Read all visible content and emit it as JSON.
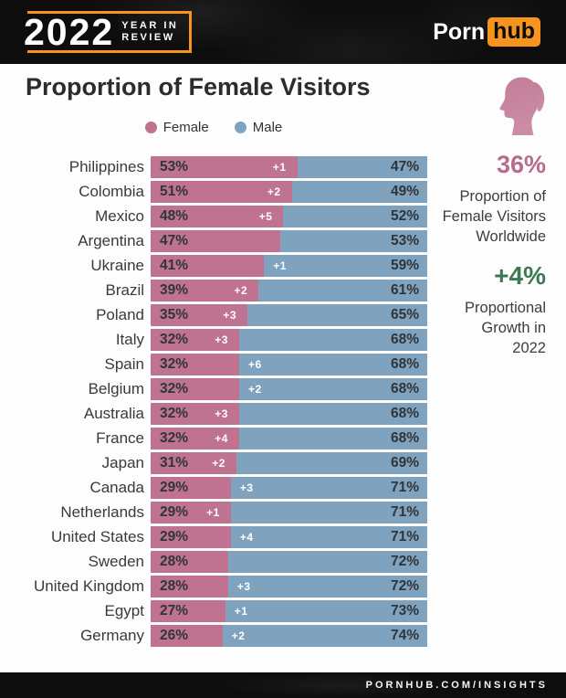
{
  "header": {
    "badge": {
      "year": "2022",
      "tag": "YEAR IN\nREVIEW"
    },
    "logo": {
      "part1": "Porn",
      "part2": "hub"
    }
  },
  "title": "Proportion of Female Visitors",
  "legend": [
    {
      "label": "Female",
      "color": "#bf7390"
    },
    {
      "label": "Male",
      "color": "#7fa2be"
    }
  ],
  "chart_data": {
    "type": "bar",
    "orientation": "horizontal-stacked",
    "title": "Proportion of Female Visitors",
    "unit": "%",
    "xlim": [
      0,
      100
    ],
    "series_names": [
      "Female",
      "Male"
    ],
    "colors": {
      "female": "#bf7390",
      "male": "#7fa2be",
      "change_text": "#ffffff",
      "pct_text": "#30353a"
    },
    "rows": [
      {
        "country": "Philippines",
        "female": 53,
        "male": 47,
        "change": "+1",
        "change_side": "female"
      },
      {
        "country": "Colombia",
        "female": 51,
        "male": 49,
        "change": "+2",
        "change_side": "female"
      },
      {
        "country": "Mexico",
        "female": 48,
        "male": 52,
        "change": "+5",
        "change_side": "female"
      },
      {
        "country": "Argentina",
        "female": 47,
        "male": 53,
        "change": null,
        "change_side": null
      },
      {
        "country": "Ukraine",
        "female": 41,
        "male": 59,
        "change": "+1",
        "change_side": "male"
      },
      {
        "country": "Brazil",
        "female": 39,
        "male": 61,
        "change": "+2",
        "change_side": "female"
      },
      {
        "country": "Poland",
        "female": 35,
        "male": 65,
        "change": "+3",
        "change_side": "female"
      },
      {
        "country": "Italy",
        "female": 32,
        "male": 68,
        "change": "+3",
        "change_side": "female"
      },
      {
        "country": "Spain",
        "female": 32,
        "male": 68,
        "change": "+6",
        "change_side": "male"
      },
      {
        "country": "Belgium",
        "female": 32,
        "male": 68,
        "change": "+2",
        "change_side": "male"
      },
      {
        "country": "Australia",
        "female": 32,
        "male": 68,
        "change": "+3",
        "change_side": "female"
      },
      {
        "country": "France",
        "female": 32,
        "male": 68,
        "change": "+4",
        "change_side": "female"
      },
      {
        "country": "Japan",
        "female": 31,
        "male": 69,
        "change": "+2",
        "change_side": "female"
      },
      {
        "country": "Canada",
        "female": 29,
        "male": 71,
        "change": "+3",
        "change_side": "male"
      },
      {
        "country": "Netherlands",
        "female": 29,
        "male": 71,
        "change": "+1",
        "change_side": "female"
      },
      {
        "country": "United States",
        "female": 29,
        "male": 71,
        "change": "+4",
        "change_side": "male"
      },
      {
        "country": "Sweden",
        "female": 28,
        "male": 72,
        "change": null,
        "change_side": null
      },
      {
        "country": "United Kingdom",
        "female": 28,
        "male": 72,
        "change": "+3",
        "change_side": "male"
      },
      {
        "country": "Egypt",
        "female": 27,
        "male": 73,
        "change": "+1",
        "change_side": "male"
      },
      {
        "country": "Germany",
        "female": 26,
        "male": 74,
        "change": "+2",
        "change_side": "male"
      }
    ]
  },
  "sidebar": {
    "icon": "female-head-icon",
    "icon_color": "#c5809b",
    "stat1": {
      "value": "36%",
      "label": "Proportion of\nFemale Visitors\nWorldwide",
      "color": "#b76b8d"
    },
    "stat2": {
      "value": "+4%",
      "label": "Proportional\nGrowth in\n2022",
      "color": "#3b7a4f"
    }
  },
  "footer": {
    "url": "PORNHUB.COM/INSIGHTS"
  }
}
